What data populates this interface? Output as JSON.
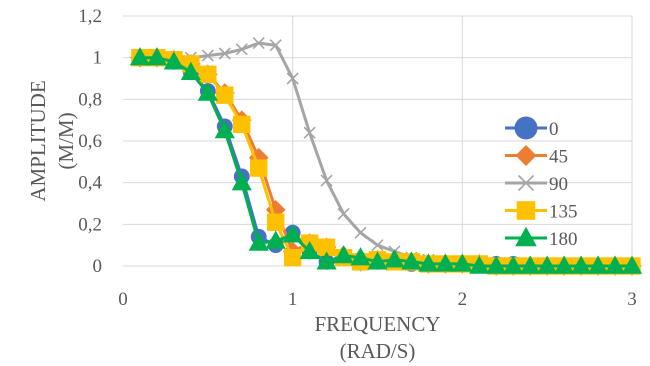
{
  "chart_data": {
    "type": "line",
    "xlabel_lines": [
      "FREQUENCY",
      "(RAD/S)"
    ],
    "ylabel_lines": [
      "AMPLITUDE",
      "(M/M)"
    ],
    "xlim": [
      0,
      3
    ],
    "ylim": [
      0,
      1.2
    ],
    "x_ticks": [
      0,
      1,
      2,
      3
    ],
    "x_tick_labels": [
      "0",
      "1",
      "2",
      "3"
    ],
    "y_ticks": [
      0,
      0.2,
      0.4,
      0.6,
      0.8,
      1.0,
      1.2
    ],
    "y_tick_labels": [
      "0",
      "0,2",
      "0,4",
      "0,6",
      "0,8",
      "1",
      "1,2"
    ],
    "grid": true,
    "legend_position": "right",
    "series": [
      {
        "name": "0",
        "color": "#4472c4",
        "marker": "circle",
        "points": [
          [
            0.1,
            1.0
          ],
          [
            0.2,
            1.0
          ],
          [
            0.3,
            0.98
          ],
          [
            0.4,
            0.93
          ],
          [
            0.5,
            0.84
          ],
          [
            0.6,
            0.67
          ],
          [
            0.7,
            0.43
          ],
          [
            0.8,
            0.14
          ],
          [
            0.9,
            0.1
          ],
          [
            1.0,
            0.16
          ],
          [
            1.1,
            0.07
          ],
          [
            1.2,
            0.02
          ],
          [
            1.3,
            0.04
          ],
          [
            1.4,
            0.03
          ],
          [
            1.5,
            0.02
          ],
          [
            1.6,
            0.02
          ],
          [
            1.7,
            0.01
          ],
          [
            1.8,
            0.01
          ],
          [
            1.9,
            0.01
          ],
          [
            2.0,
            0.01
          ],
          [
            2.1,
            0.01
          ],
          [
            2.2,
            0.01
          ],
          [
            2.3,
            0.01
          ],
          [
            2.4,
            0.0
          ],
          [
            2.5,
            0.0
          ],
          [
            2.6,
            0.0
          ],
          [
            2.7,
            0.0
          ],
          [
            2.8,
            0.0
          ],
          [
            2.9,
            0.0
          ],
          [
            3.0,
            0.0
          ]
        ]
      },
      {
        "name": "45",
        "color": "#ed7d31",
        "marker": "diamond",
        "points": [
          [
            0.1,
            1.0
          ],
          [
            0.2,
            1.0
          ],
          [
            0.3,
            0.99
          ],
          [
            0.4,
            0.97
          ],
          [
            0.5,
            0.92
          ],
          [
            0.6,
            0.83
          ],
          [
            0.7,
            0.7
          ],
          [
            0.8,
            0.52
          ],
          [
            0.9,
            0.27
          ],
          [
            1.0,
            0.07
          ],
          [
            1.1,
            0.11
          ],
          [
            1.2,
            0.09
          ],
          [
            1.3,
            0.05
          ],
          [
            1.4,
            0.02
          ],
          [
            1.5,
            0.03
          ],
          [
            1.6,
            0.03
          ],
          [
            1.7,
            0.02
          ],
          [
            1.8,
            0.01
          ],
          [
            1.9,
            0.01
          ],
          [
            2.0,
            0.01
          ],
          [
            2.1,
            0.01
          ],
          [
            2.2,
            0.0
          ],
          [
            2.3,
            0.0
          ],
          [
            2.4,
            0.0
          ],
          [
            2.5,
            0.0
          ],
          [
            2.6,
            0.0
          ],
          [
            2.7,
            0.0
          ],
          [
            2.8,
            0.0
          ],
          [
            2.9,
            0.0
          ],
          [
            3.0,
            0.0
          ]
        ]
      },
      {
        "name": "90",
        "color": "#a5a5a5",
        "marker": "x",
        "points": [
          [
            0.1,
            1.0
          ],
          [
            0.2,
            1.0
          ],
          [
            0.3,
            1.0
          ],
          [
            0.4,
            1.0
          ],
          [
            0.5,
            1.01
          ],
          [
            0.6,
            1.02
          ],
          [
            0.7,
            1.04
          ],
          [
            0.8,
            1.07
          ],
          [
            0.9,
            1.06
          ],
          [
            1.0,
            0.9
          ],
          [
            1.1,
            0.64
          ],
          [
            1.2,
            0.41
          ],
          [
            1.3,
            0.25
          ],
          [
            1.4,
            0.16
          ],
          [
            1.5,
            0.1
          ],
          [
            1.6,
            0.07
          ],
          [
            1.7,
            0.04
          ],
          [
            1.8,
            0.03
          ],
          [
            1.9,
            0.02
          ],
          [
            2.0,
            0.02
          ],
          [
            2.1,
            0.01
          ],
          [
            2.2,
            0.01
          ],
          [
            2.3,
            0.01
          ],
          [
            2.4,
            0.01
          ],
          [
            2.5,
            0.01
          ],
          [
            2.6,
            0.01
          ],
          [
            2.7,
            0.0
          ],
          [
            2.8,
            0.0
          ],
          [
            2.9,
            0.0
          ],
          [
            3.0,
            0.0
          ]
        ]
      },
      {
        "name": "135",
        "color": "#ffc000",
        "marker": "square",
        "points": [
          [
            0.1,
            1.0
          ],
          [
            0.2,
            1.0
          ],
          [
            0.3,
            0.99
          ],
          [
            0.4,
            0.97
          ],
          [
            0.5,
            0.92
          ],
          [
            0.6,
            0.82
          ],
          [
            0.7,
            0.68
          ],
          [
            0.8,
            0.47
          ],
          [
            0.9,
            0.21
          ],
          [
            1.0,
            0.04
          ],
          [
            1.1,
            0.11
          ],
          [
            1.2,
            0.09
          ],
          [
            1.3,
            0.04
          ],
          [
            1.4,
            0.02
          ],
          [
            1.5,
            0.03
          ],
          [
            1.6,
            0.02
          ],
          [
            1.7,
            0.02
          ],
          [
            1.8,
            0.01
          ],
          [
            1.9,
            0.01
          ],
          [
            2.0,
            0.01
          ],
          [
            2.1,
            0.01
          ],
          [
            2.2,
            0.0
          ],
          [
            2.3,
            0.0
          ],
          [
            2.4,
            0.0
          ],
          [
            2.5,
            0.0
          ],
          [
            2.6,
            0.0
          ],
          [
            2.7,
            0.0
          ],
          [
            2.8,
            0.0
          ],
          [
            2.9,
            0.0
          ],
          [
            3.0,
            0.0
          ]
        ]
      },
      {
        "name": "180",
        "color": "#00b050",
        "marker": "triangle",
        "points": [
          [
            0.1,
            1.0
          ],
          [
            0.2,
            1.0
          ],
          [
            0.3,
            0.98
          ],
          [
            0.4,
            0.93
          ],
          [
            0.5,
            0.83
          ],
          [
            0.6,
            0.65
          ],
          [
            0.7,
            0.4
          ],
          [
            0.8,
            0.11
          ],
          [
            0.9,
            0.12
          ],
          [
            1.0,
            0.15
          ],
          [
            1.1,
            0.07
          ],
          [
            1.2,
            0.02
          ],
          [
            1.3,
            0.05
          ],
          [
            1.4,
            0.04
          ],
          [
            1.5,
            0.02
          ],
          [
            1.6,
            0.03
          ],
          [
            1.7,
            0.02
          ],
          [
            1.8,
            0.01
          ],
          [
            1.9,
            0.01
          ],
          [
            2.0,
            0.01
          ],
          [
            2.1,
            0.0
          ],
          [
            2.2,
            0.0
          ],
          [
            2.3,
            0.0
          ],
          [
            2.4,
            0.0
          ],
          [
            2.5,
            0.0
          ],
          [
            2.6,
            0.0
          ],
          [
            2.7,
            0.0
          ],
          [
            2.8,
            0.0
          ],
          [
            2.9,
            0.0
          ],
          [
            3.0,
            0.0
          ]
        ]
      }
    ]
  }
}
